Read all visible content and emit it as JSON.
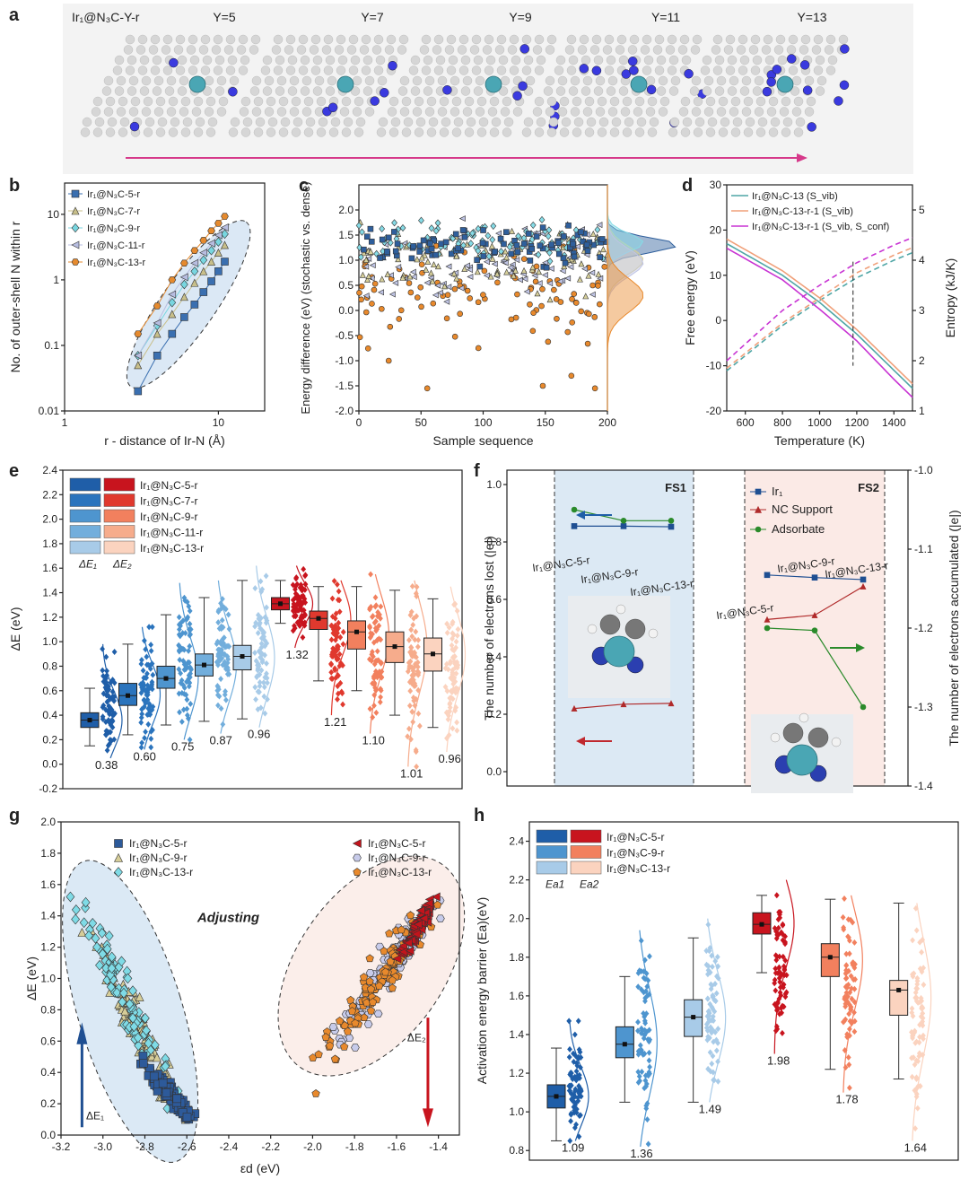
{
  "panels": {
    "a": "a",
    "b": "b",
    "c": "c",
    "d": "d",
    "e": "e",
    "f": "f",
    "g": "g",
    "h": "h"
  },
  "panel_a": {
    "series_label": "Ir₁@N₃C-Y-r",
    "y_labels": [
      "Y=5",
      "Y=7",
      "Y=9",
      "Y=11",
      "Y=13"
    ],
    "colors": {
      "carbon": "#d6d6d6",
      "nitrogen": "#3a3adf",
      "iridium": "#4aa6b4",
      "arrow": "#d6398a"
    }
  },
  "chart_data": [
    {
      "id": "b",
      "type": "scatter",
      "xlabel": "r - distance of Ir-N (Å)",
      "ylabel": "No. of outer-shell N within r",
      "x_scale": "log",
      "y_scale": "log",
      "xlim": [
        1,
        20
      ],
      "ylim": [
        0.01,
        30
      ],
      "x_ticks": [
        "1",
        "10"
      ],
      "y_ticks": [
        "0.01",
        "0.1",
        "1",
        "10"
      ],
      "legend_position": "top-left",
      "series": [
        {
          "name": "Ir₁@N₃C-5-r",
          "marker": "square",
          "color": "#3a6fb0",
          "x": [
            3,
            4,
            5,
            6,
            7,
            8,
            9,
            10,
            11
          ],
          "y": [
            0.02,
            0.07,
            0.15,
            0.27,
            0.42,
            0.65,
            0.95,
            1.35,
            1.9
          ]
        },
        {
          "name": "Ir₁@N₃C-7-r",
          "marker": "triangle",
          "color": "#c8bf8a",
          "x": [
            3,
            4,
            5,
            6,
            7,
            8,
            9,
            10,
            11
          ],
          "y": [
            0.05,
            0.15,
            0.3,
            0.55,
            0.9,
            1.35,
            1.9,
            2.6,
            3.4
          ]
        },
        {
          "name": "Ir₁@N₃C-9-r",
          "marker": "diamond",
          "color": "#78d6e0",
          "x": [
            3,
            4,
            5,
            6,
            7,
            8,
            9,
            10,
            11
          ],
          "y": [
            0.07,
            0.2,
            0.45,
            0.85,
            1.35,
            2.0,
            2.8,
            3.8,
            5
          ]
        },
        {
          "name": "Ir₁@N₃C-11-r",
          "marker": "triangle-left",
          "color": "#b7bde0",
          "x": [
            3,
            4,
            5,
            6,
            7,
            8,
            9,
            10,
            11
          ],
          "y": [
            0.07,
            0.22,
            0.6,
            1.1,
            1.8,
            2.6,
            3.6,
            4.8,
            6.3
          ]
        },
        {
          "name": "Ir₁@N₃C-13-r",
          "marker": "hexagon",
          "color": "#e58a2e",
          "x": [
            3,
            4,
            5,
            6,
            7,
            8,
            9,
            10,
            11
          ],
          "y": [
            0.15,
            0.4,
            1.0,
            1.8,
            2.8,
            4.0,
            5.6,
            7.3,
            9.3
          ]
        }
      ]
    },
    {
      "id": "c",
      "type": "scatter",
      "xlabel": "Sample sequence",
      "ylabel": "Energy difference (eV) (stochastic vs. dense)",
      "xlim": [
        0,
        200
      ],
      "ylim": [
        -2.0,
        2.5
      ],
      "x_ticks": [
        0,
        50,
        100,
        150,
        200
      ],
      "y_ticks": [
        -2.0,
        -1.5,
        -1.0,
        -0.5,
        0.0,
        0.5,
        1.0,
        1.5,
        2.0
      ],
      "series": [
        {
          "name": "Ir₁@N₃C-5-r",
          "color": "#2f5f9c",
          "mean": 1.3,
          "spread": 0.25
        },
        {
          "name": "Ir₁@N₃C-7-r",
          "color": "#d6cf9a",
          "mean": 1.0,
          "spread": 0.45
        },
        {
          "name": "Ir₁@N₃C-9-r",
          "color": "#86dbe6",
          "mean": 1.35,
          "spread": 0.3
        },
        {
          "name": "Ir₁@N₃C-11-r",
          "color": "#bfc4e4",
          "mean": 0.95,
          "spread": 0.45
        },
        {
          "name": "Ir₁@N₃C-13-r",
          "color": "#e8892c",
          "mean": 0.3,
          "spread": 0.55
        }
      ],
      "outliers": [
        [
          55,
          -1.55
        ],
        [
          148,
          -1.5
        ],
        [
          190,
          -1.55
        ],
        [
          24,
          -1.0
        ],
        [
          171,
          -1.3
        ]
      ]
    },
    {
      "id": "d",
      "type": "line",
      "xlabel": "Temperature (K)",
      "ylabel": "Free energy (eV)",
      "y2label": "Entropy (kJ/K)",
      "xlim": [
        500,
        1500
      ],
      "ylim": [
        -20,
        30
      ],
      "y2lim": [
        1,
        5.5
      ],
      "x_ticks": [
        600,
        800,
        1000,
        1200,
        1400
      ],
      "y_ticks": [
        -20,
        -10,
        0,
        10,
        20,
        30
      ],
      "y2_ticks": [
        1,
        2,
        3,
        4,
        5
      ],
      "vline_x": 1180,
      "legend_position": "top",
      "series": [
        {
          "name": "Ir₁@N₃C-13 (S_vib)",
          "color": "#4fa6a6",
          "free_energy": [
            [
              500,
              17
            ],
            [
              800,
              10
            ],
            [
              1000,
              4
            ],
            [
              1200,
              -3
            ],
            [
              1400,
              -11
            ],
            [
              1500,
              -15
            ]
          ],
          "entropy": [
            [
              500,
              1.8
            ],
            [
              800,
              2.7
            ],
            [
              1000,
              3.2
            ],
            [
              1200,
              3.65
            ],
            [
              1400,
              4.0
            ],
            [
              1500,
              4.15
            ]
          ]
        },
        {
          "name": "Ir₁@N₃C-13-r-1 (S_vib)",
          "color": "#f0a07a",
          "free_energy": [
            [
              500,
              18
            ],
            [
              800,
              11
            ],
            [
              1000,
              5
            ],
            [
              1200,
              -2
            ],
            [
              1400,
              -10
            ],
            [
              1500,
              -14
            ]
          ],
          "entropy": [
            [
              500,
              1.85
            ],
            [
              800,
              2.75
            ],
            [
              1000,
              3.25
            ],
            [
              1200,
              3.75
            ],
            [
              1400,
              4.1
            ],
            [
              1500,
              4.25
            ]
          ]
        },
        {
          "name": "Ir₁@N₃C-13-r-1 (S_vib, S_conf)",
          "color": "#c833d3",
          "free_energy": [
            [
              500,
              16
            ],
            [
              800,
              9
            ],
            [
              1000,
              2.5
            ],
            [
              1200,
              -4.5
            ],
            [
              1400,
              -13
            ],
            [
              1500,
              -17
            ]
          ],
          "entropy": [
            [
              500,
              2.0
            ],
            [
              800,
              3.0
            ],
            [
              1000,
              3.5
            ],
            [
              1200,
              3.95
            ],
            [
              1400,
              4.3
            ],
            [
              1500,
              4.45
            ]
          ]
        }
      ]
    },
    {
      "id": "e",
      "type": "box",
      "ylabel": "ΔE (eV)",
      "ylim": [
        -0.2,
        2.4
      ],
      "y_ticks": [
        "-0.2",
        "0.0",
        "0.2",
        "0.4",
        "0.6",
        "0.8",
        "1.0",
        "1.2",
        "1.4",
        "1.6",
        "1.8",
        "2.0",
        "2.2",
        "2.4"
      ],
      "legend_position": "top-left",
      "legend_cols": [
        "ΔE₁",
        "ΔE₂"
      ],
      "legend": [
        "Ir₁@N₃C-5-r",
        "Ir₁@N₃C-7-r",
        "Ir₁@N₃C-9-r",
        "Ir₁@N₃C-11-r",
        "Ir₁@N₃C-13-r"
      ],
      "groups": [
        {
          "label": "0.38",
          "color": "#1f5ea8",
          "q1": 0.3,
          "median": 0.36,
          "q3": 0.42,
          "wlo": 0.15,
          "whi": 0.62,
          "slo": 0.05,
          "shi": 0.98
        },
        {
          "label": "0.60",
          "color": "#2b74bd",
          "q1": 0.48,
          "median": 0.56,
          "q3": 0.66,
          "wlo": 0.24,
          "whi": 0.98,
          "slo": 0.12,
          "shi": 1.12
        },
        {
          "label": "0.75",
          "color": "#4e95cf",
          "q1": 0.62,
          "median": 0.7,
          "q3": 0.8,
          "wlo": 0.32,
          "whi": 1.22,
          "slo": 0.2,
          "shi": 1.48
        },
        {
          "label": "0.87",
          "color": "#72aedc",
          "q1": 0.72,
          "median": 0.81,
          "q3": 0.9,
          "wlo": 0.35,
          "whi": 1.36,
          "slo": 0.25,
          "shi": 1.5
        },
        {
          "label": "0.96",
          "color": "#a8cbe8",
          "q1": 0.77,
          "median": 0.88,
          "q3": 0.97,
          "wlo": 0.37,
          "whi": 1.5,
          "slo": 0.3,
          "shi": 1.62
        },
        {
          "label": "1.32",
          "color": "#c8141e",
          "q1": 1.26,
          "median": 1.31,
          "q3": 1.36,
          "wlo": 1.15,
          "whi": 1.5,
          "slo": 0.95,
          "shi": 1.62
        },
        {
          "label": "1.21",
          "color": "#e0392e",
          "q1": 1.1,
          "median": 1.19,
          "q3": 1.25,
          "wlo": 0.68,
          "whi": 1.45,
          "slo": 0.4,
          "shi": 1.5
        },
        {
          "label": "1.10",
          "color": "#f2805e",
          "q1": 0.94,
          "median": 1.08,
          "q3": 1.17,
          "wlo": 0.6,
          "whi": 1.45,
          "slo": 0.25,
          "shi": 1.55
        },
        {
          "label": "1.01",
          "color": "#f6ac8c",
          "q1": 0.83,
          "median": 0.96,
          "q3": 1.08,
          "wlo": 0.4,
          "whi": 1.42,
          "slo": -0.02,
          "shi": 1.5
        },
        {
          "label": "0.96",
          "color": "#fbd3bf",
          "q1": 0.76,
          "median": 0.9,
          "q3": 1.03,
          "wlo": 0.3,
          "whi": 1.35,
          "slo": 0.1,
          "shi": 1.45
        }
      ]
    },
    {
      "id": "f",
      "type": "line",
      "ylabel": "The number of electrons lost (|e|)",
      "y2label": "The number of electrons accumulated (|e|)",
      "ylim": [
        -0.05,
        1.05
      ],
      "y2lim": [
        -1.4,
        -1.0
      ],
      "y_ticks": [
        "0.0",
        "0.2",
        "0.4",
        "0.6",
        "0.8",
        "1.0"
      ],
      "y2_ticks": [
        "-1.4",
        "-1.3",
        "-1.2",
        "-1.1",
        "-1.0"
      ],
      "states": [
        "FS1",
        "FS2"
      ],
      "point_labels": {
        "fs1": [
          "Ir₁@N₃C-5-r",
          "Ir₁@N₃C-9-r",
          "Ir₁@N₃C-13-r"
        ],
        "fs2": [
          "Ir₁@N₃C-5-r",
          "Ir₁@N₃C-9-r",
          "Ir₁@N₃C-13-r"
        ]
      },
      "series": [
        {
          "name": "Ir₁",
          "color": "#1f4f92",
          "fs1": [
            0.855,
            0.855,
            0.853
          ],
          "fs2": [
            0.685,
            0.676,
            0.669
          ]
        },
        {
          "name": "NC Support",
          "color": "#b02a2a",
          "fs1": [
            0.22,
            0.235,
            0.238
          ],
          "fs2": [
            0.53,
            0.545,
            0.645
          ]
        },
        {
          "name": "Adsorbate",
          "color": "#2a8a2a",
          "fs1_y2": [
            -1.05,
            -1.064,
            -1.064
          ],
          "fs2_y2": [
            -1.2,
            -1.203,
            -1.3
          ]
        }
      ]
    },
    {
      "id": "g",
      "type": "scatter",
      "xlabel": "εd (eV)",
      "ylabel": "ΔE (eV)",
      "xlim": [
        -3.2,
        -1.3
      ],
      "ylim": [
        0.0,
        2.0
      ],
      "x_ticks": [
        "-3.2",
        "-3.0",
        "-2.8",
        "-2.6",
        "-2.4",
        "-2.2",
        "-2.0",
        "-1.8",
        "-1.6",
        "-1.4"
      ],
      "y_ticks": [
        "0.0",
        "0.2",
        "0.4",
        "0.6",
        "0.8",
        "1.0",
        "1.2",
        "1.4",
        "1.6",
        "1.8",
        "2.0"
      ],
      "annotation": "Adjusting",
      "arrow_labels": [
        "ΔE₁",
        "ΔE₂"
      ],
      "series": [
        {
          "name": "Ir₁@N₃C-5-r",
          "marker": "square",
          "color": "#2d5a9a",
          "cx": -2.68,
          "cy": 0.26,
          "sx": 0.06,
          "sy": 0.1
        },
        {
          "name": "Ir₁@N₃C-9-r",
          "marker": "triangle",
          "color": "#d6cd98",
          "cx": -2.85,
          "cy": 0.72,
          "sx": 0.1,
          "sy": 0.28
        },
        {
          "name": "Ir₁@N₃C-13-r",
          "marker": "diamond",
          "color": "#7fdbe6",
          "cx": -2.9,
          "cy": 0.9,
          "sx": 0.12,
          "sy": 0.35
        },
        {
          "name": "Ir₁@N₃C-5-r",
          "marker": "triangle-left",
          "color": "#c2141c",
          "cx": -1.49,
          "cy": 1.35,
          "sx": 0.04,
          "sy": 0.1
        },
        {
          "name": "Ir₁@N₃C-9-r",
          "marker": "hexagon",
          "color": "#c7cbea",
          "cx": -1.65,
          "cy": 1.05,
          "sx": 0.12,
          "sy": 0.25
        },
        {
          "name": "Ir₁@N₃C-13-r",
          "marker": "pentagon",
          "color": "#e8892c",
          "cx": -1.7,
          "cy": 0.95,
          "sx": 0.14,
          "sy": 0.28
        }
      ]
    },
    {
      "id": "h",
      "type": "box",
      "ylabel": "Activation energy barrier (Ea)(eV)",
      "ylim": [
        0.75,
        2.5
      ],
      "y_ticks": [
        "0.8",
        "1.0",
        "1.2",
        "1.4",
        "1.6",
        "1.8",
        "2.0",
        "2.2",
        "2.4"
      ],
      "legend_position": "top-left",
      "legend_cols": [
        "Ea1",
        "Ea2"
      ],
      "legend": [
        "Ir₁@N₃C-5-r",
        "Ir₁@N₃C-9-r",
        "Ir₁@N₃C-13-r"
      ],
      "groups": [
        {
          "label": "1.09",
          "color": "#1f5ea8",
          "q1": 1.02,
          "median": 1.08,
          "q3": 1.14,
          "wlo": 0.85,
          "whi": 1.33,
          "slo": 0.85,
          "shi": 1.47
        },
        {
          "label": "1.36",
          "color": "#4e95cf",
          "q1": 1.28,
          "median": 1.35,
          "q3": 1.44,
          "wlo": 1.05,
          "whi": 1.7,
          "slo": 0.82,
          "shi": 1.94
        },
        {
          "label": "1.49",
          "color": "#a8cbe8",
          "q1": 1.39,
          "median": 1.49,
          "q3": 1.58,
          "wlo": 1.05,
          "whi": 1.9,
          "slo": 1.05,
          "shi": 2.0
        },
        {
          "label": "1.98",
          "color": "#c8141e",
          "q1": 1.92,
          "median": 1.97,
          "q3": 2.03,
          "wlo": 1.72,
          "whi": 2.12,
          "slo": 1.3,
          "shi": 2.2
        },
        {
          "label": "1.78",
          "color": "#f2805e",
          "q1": 1.7,
          "median": 1.8,
          "q3": 1.87,
          "wlo": 1.22,
          "whi": 2.1,
          "slo": 1.1,
          "shi": 2.12
        },
        {
          "label": "1.64",
          "color": "#fbd3bf",
          "q1": 1.5,
          "median": 1.63,
          "q3": 1.68,
          "wlo": 1.17,
          "whi": 2.08,
          "slo": 0.85,
          "shi": 2.08
        }
      ]
    }
  ]
}
